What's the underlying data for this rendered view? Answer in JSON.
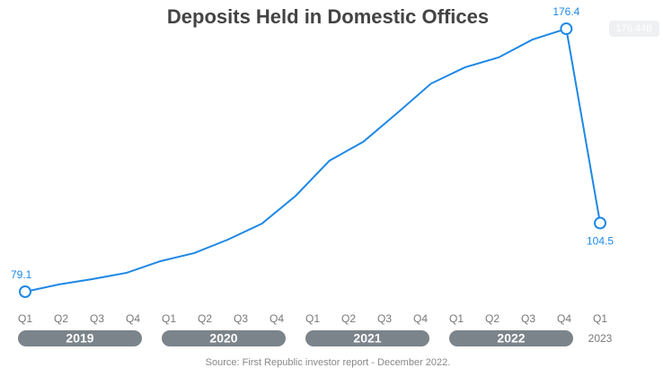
{
  "chart_data": {
    "type": "line",
    "title": "Deposits Held in Domestic Offices",
    "source": "Source: First Republic investor report - December 2022.",
    "tooltip": "176.44B",
    "x": [
      0,
      1,
      2,
      3,
      4,
      5,
      6,
      7,
      8,
      9,
      10,
      11,
      12,
      13,
      14,
      15,
      16,
      17
    ],
    "xlim": [
      0,
      17
    ],
    "xticks": [
      {
        "value": 0,
        "label": "Q1"
      },
      {
        "value": 1.0625,
        "label": "Q2"
      },
      {
        "value": 2.125,
        "label": "Q3"
      },
      {
        "value": 3.1875,
        "label": "Q4"
      },
      {
        "value": 4.25,
        "label": "Q1"
      },
      {
        "value": 5.3125,
        "label": "Q2"
      },
      {
        "value": 6.375,
        "label": "Q3"
      },
      {
        "value": 7.4375,
        "label": "Q4"
      },
      {
        "value": 8.5,
        "label": "Q1"
      },
      {
        "value": 9.5625,
        "label": "Q2"
      },
      {
        "value": 10.625,
        "label": "Q3"
      },
      {
        "value": 11.6875,
        "label": "Q4"
      },
      {
        "value": 12.75,
        "label": "Q1"
      },
      {
        "value": 13.8125,
        "label": "Q2"
      },
      {
        "value": 14.875,
        "label": "Q3"
      },
      {
        "value": 15.9375,
        "label": "Q4"
      },
      {
        "value": 17,
        "label": "Q1"
      }
    ],
    "years": [
      "2019",
      "2020",
      "2021",
      "2022",
      "2023"
    ],
    "ylim": [
      70,
      180
    ],
    "color": "#1e88e5",
    "values": [
      79.1,
      81.8,
      83.8,
      86.1,
      90.4,
      93.4,
      98.4,
      104.3,
      114.6,
      127.6,
      134.6,
      145.2,
      156.1,
      162.1,
      165.8,
      172.4,
      176.4,
      104.5
    ],
    "value_labels": [
      "79.1",
      null,
      null,
      null,
      null,
      null,
      null,
      null,
      null,
      null,
      null,
      null,
      null,
      null,
      null,
      null,
      "176.4",
      "104.5"
    ]
  }
}
